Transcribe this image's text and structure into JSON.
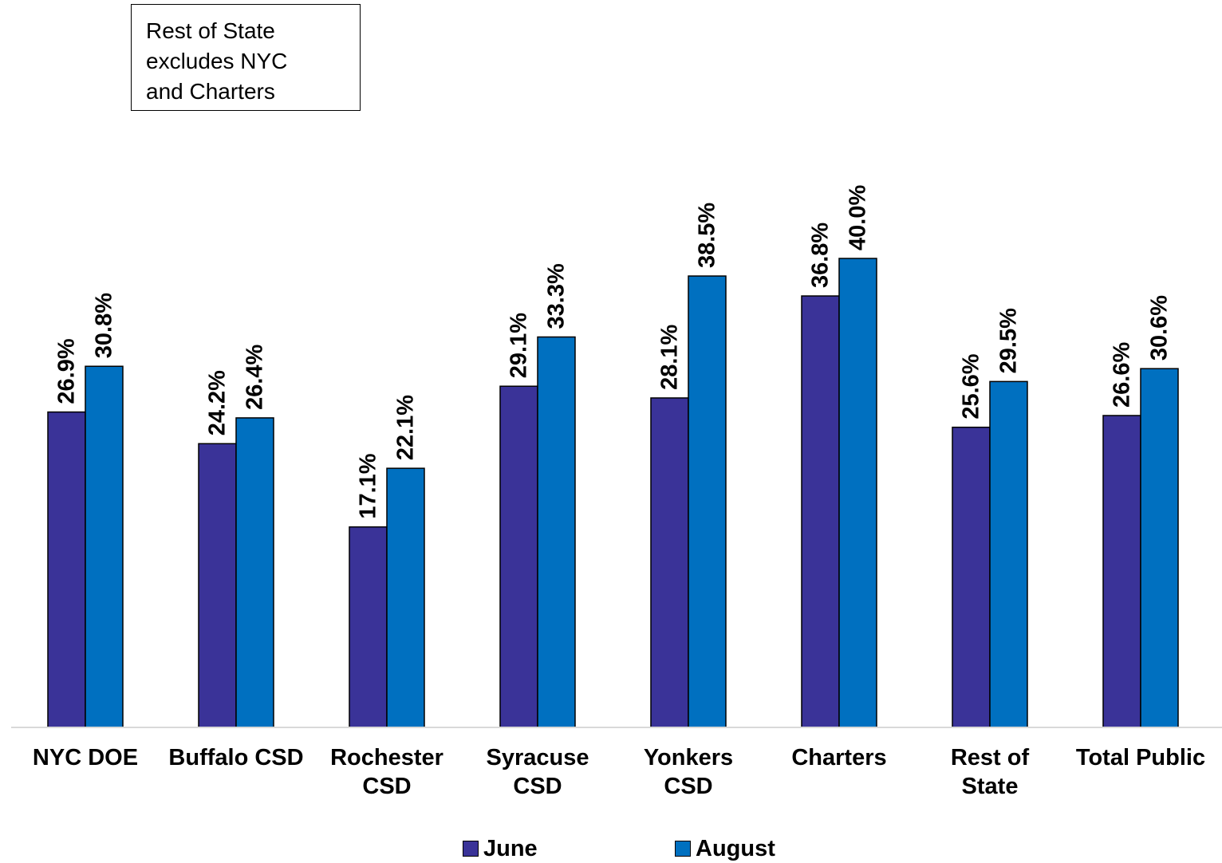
{
  "note": {
    "lines": [
      "Rest of State",
      "excludes NYC",
      "and Charters"
    ]
  },
  "chart_data": {
    "type": "bar",
    "title": "",
    "xlabel": "",
    "ylabel": "",
    "ylim": [
      0,
      45
    ],
    "grid": false,
    "legend_position": "bottom",
    "categories": [
      [
        "NYC DOE"
      ],
      [
        "Buffalo CSD"
      ],
      [
        "Rochester",
        "CSD"
      ],
      [
        "Syracuse",
        "CSD"
      ],
      [
        "Yonkers",
        "CSD"
      ],
      [
        "Charters"
      ],
      [
        "Rest of",
        "State"
      ],
      [
        "Total Public"
      ]
    ],
    "series": [
      {
        "name": "June",
        "color": "#3a3398",
        "values": [
          26.9,
          24.2,
          17.1,
          29.1,
          28.1,
          36.8,
          25.6,
          26.6
        ],
        "labels": [
          "26.9%",
          "24.2%",
          "17.1%",
          "29.1%",
          "28.1%",
          "36.8%",
          "25.6%",
          "26.6%"
        ]
      },
      {
        "name": "August",
        "color": "#0070c0",
        "values": [
          30.8,
          26.4,
          22.1,
          33.3,
          38.5,
          40.0,
          29.5,
          30.6
        ],
        "labels": [
          "30.8%",
          "26.4%",
          "22.1%",
          "33.3%",
          "38.5%",
          "40.0%",
          "29.5%",
          "30.6%"
        ]
      }
    ]
  }
}
